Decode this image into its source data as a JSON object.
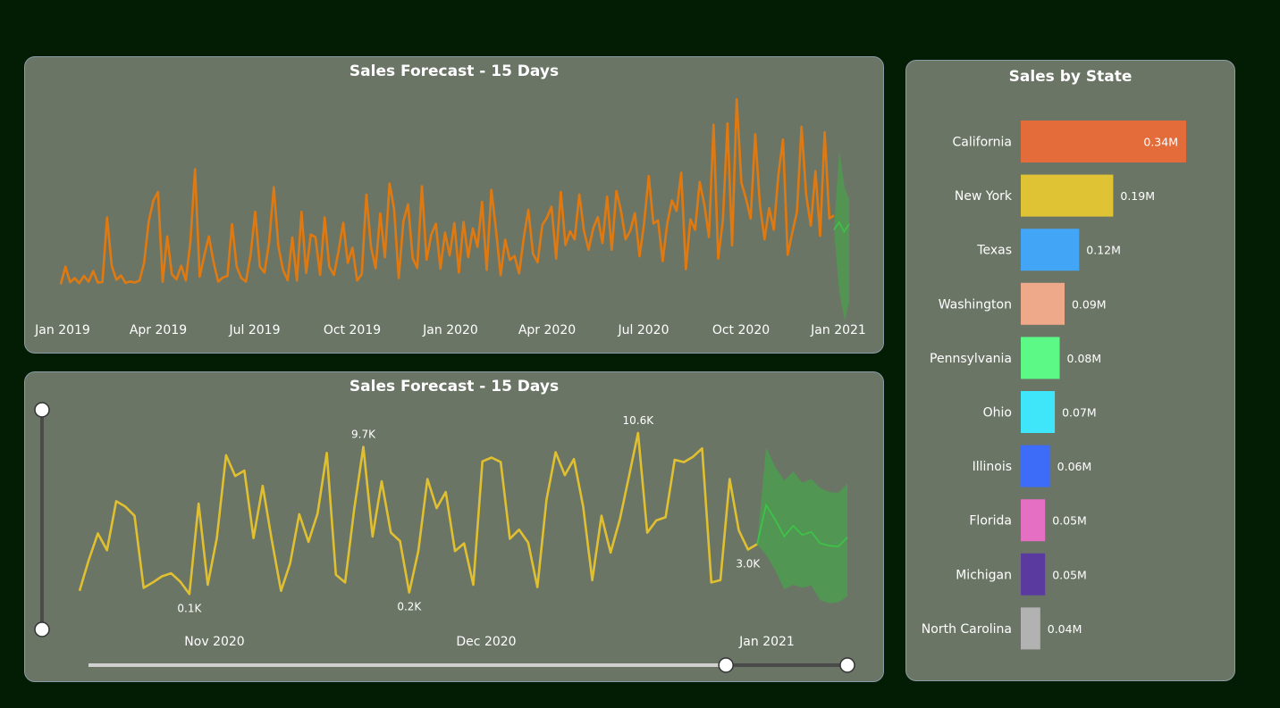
{
  "colors": {
    "background": "#021d03",
    "panel": "#6b7566",
    "actual_line_top": "#e07a10",
    "actual_line_bottom": "#e0c030",
    "forecast_band": "#4f9a50",
    "forecast_line": "#3ec24a"
  },
  "charts": {
    "top": {
      "title": "Sales Forecast - 15 Days"
    },
    "bottom": {
      "title": "Sales Forecast - 15 Days"
    },
    "state": {
      "title": "Sales by State"
    }
  },
  "chart_data": [
    {
      "type": "line",
      "title": "Sales Forecast - 15 Days",
      "x_ticks": [
        "Jan 2019",
        "Apr 2019",
        "Jul 2019",
        "Oct 2019",
        "Jan 2020",
        "Apr 2020",
        "Jul 2020",
        "Oct 2020",
        "Jan 2021"
      ],
      "x_range": [
        "2019-01-01",
        "2021-01-15"
      ],
      "series": [
        {
          "kind": "actual",
          "x_start": "2019-01-01",
          "step": "4 days",
          "values": [
            120,
            1050,
            230,
            450,
            180,
            560,
            260,
            820,
            210,
            240,
            3650,
            1100,
            360,
            590,
            200,
            270,
            210,
            320,
            1250,
            3450,
            4550,
            5000,
            260,
            2650,
            640,
            380,
            1100,
            330,
            2350,
            6200,
            520,
            1650,
            2650,
            1300,
            260,
            480,
            560,
            3300,
            1050,
            450,
            260,
            1700,
            3950,
            1050,
            740,
            2350,
            5250,
            2150,
            880,
            340,
            2600,
            320,
            3950,
            720,
            2750,
            2620,
            620,
            3650,
            1050,
            620,
            1900,
            3370,
            1250,
            2050,
            320,
            650,
            4860,
            2100,
            970,
            3870,
            1550,
            5450,
            4100,
            450,
            3450,
            4350,
            1500,
            980,
            5300,
            1420,
            2720,
            3320,
            950,
            2850,
            1650,
            3360,
            750,
            3420,
            1550,
            3070,
            2100,
            4480,
            880,
            5110,
            3000,
            600,
            2480,
            1400,
            1620,
            700,
            2600,
            4050,
            1730,
            1290,
            3250,
            3640,
            4220,
            1480,
            5000,
            2200,
            2920,
            2500,
            4870,
            2950,
            1950,
            3080,
            3670,
            2300,
            4750,
            1950,
            5050,
            4010,
            2500,
            2950,
            3880,
            1600,
            3360,
            5850,
            3330,
            3500,
            1350,
            3320,
            4550,
            4000,
            6020,
            920,
            3550,
            3000,
            5530,
            4330,
            2620,
            8550,
            1480,
            3500,
            8620,
            2180,
            9900,
            5500,
            4640,
            3600,
            8050,
            4350,
            2500,
            4150,
            3000,
            5900,
            7770,
            1680,
            2860,
            3950,
            8450,
            4850,
            3220,
            6100,
            2680,
            8150,
            3600,
            3760
          ],
          "note": ""
        },
        {
          "kind": "forecast",
          "x_start": "2021-01-01",
          "values": [
            3000,
            3400,
            2900,
            3300
          ]
        }
      ]
    },
    {
      "type": "line",
      "title": "Sales Forecast - 15 Days",
      "x_ticks": [
        "Nov 2020",
        "Dec 2020",
        "Jan 2021"
      ],
      "series": [
        {
          "kind": "actual",
          "x_start": "2020-10-15",
          "values": [
            300,
            2300,
            4050,
            2950,
            6150,
            5800,
            5200,
            500,
            850,
            1250,
            1450,
            900,
            100,
            6000,
            700,
            3750,
            9150,
            7800,
            8150,
            3750,
            7150,
            3600,
            300,
            2100,
            5300,
            3500,
            5350,
            9300,
            1350,
            850,
            5650,
            9700,
            3850,
            7450,
            4100,
            3550,
            200,
            2900,
            7600,
            5700,
            6750,
            2900,
            3400,
            700,
            8750,
            9000,
            8700,
            3700,
            4300,
            3450,
            550,
            6250,
            9350,
            7850,
            8900,
            5800,
            1000,
            5200,
            2800,
            4950,
            7750,
            10600,
            4100,
            4900,
            5100,
            8850,
            8700,
            9050,
            9600,
            850,
            1000,
            7600,
            4250,
            3000,
            3350
          ],
          "labels": [
            {
              "index": 12,
              "text": "0.1K"
            },
            {
              "index": 31,
              "text": "9.7K"
            },
            {
              "index": 36,
              "text": "0.2K"
            },
            {
              "index": 61,
              "text": "10.6K"
            },
            {
              "index": 73,
              "text": "3.0K"
            }
          ]
        },
        {
          "kind": "forecast",
          "x_start": "2021-01-01",
          "values": [
            3350,
            5900,
            4950,
            3850,
            4550,
            3950,
            4150,
            3400,
            3250,
            3200,
            3800
          ],
          "upper": [
            3350,
            9650,
            8400,
            7500,
            8100,
            7350,
            7600,
            7000,
            6750,
            6700,
            7300
          ],
          "lower": [
            3350,
            2650,
            1650,
            400,
            700,
            500,
            650,
            -300,
            -500,
            -450,
            -50
          ]
        }
      ],
      "slider": {
        "start": 0.0,
        "end": 0.84
      }
    },
    {
      "type": "bar",
      "orientation": "horizontal",
      "title": "Sales by State",
      "categories": [
        "California",
        "New York",
        "Texas",
        "Washington",
        "Pennsylvania",
        "Ohio",
        "Illinois",
        "Florida",
        "Michigan",
        "North Carolina"
      ],
      "values": [
        0.34,
        0.19,
        0.12,
        0.09,
        0.08,
        0.07,
        0.06,
        0.05,
        0.05,
        0.04
      ],
      "value_labels": [
        "0.34M",
        "0.19M",
        "0.12M",
        "0.09M",
        "0.08M",
        "0.07M",
        "0.06M",
        "0.05M",
        "0.05M",
        "0.04M"
      ],
      "colors": [
        "#e36c3a",
        "#e0c235",
        "#43a5f5",
        "#eea88a",
        "#5cf987",
        "#3fe5f9",
        "#3d6cf9",
        "#e56fc3",
        "#5b3aa0",
        "#b2b2b2"
      ]
    }
  ]
}
